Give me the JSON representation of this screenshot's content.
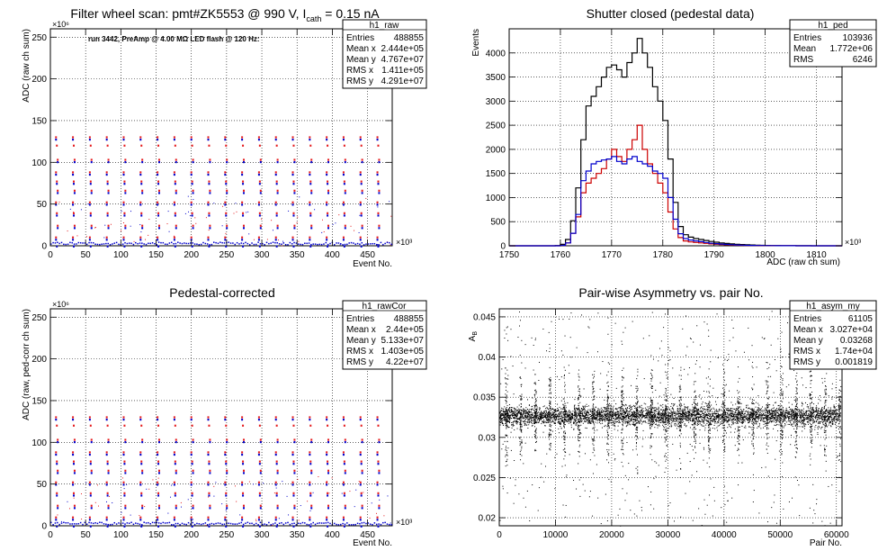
{
  "panels": [
    {
      "id": "raw",
      "title_main": "Filter wheel scan: pmt#ZK5553 @   990 V, I",
      "title_sub": "cath",
      "title_tail": " = 0.15 nA",
      "annotation": "run 3442, PreAmp @ 4.00 MΩ LED flash @  120 Hz:",
      "xlabel": "Event No.",
      "ylabel": "ADC (raw ch sum)",
      "x_multiplier": "×10³",
      "y_multiplier": "×10⁶",
      "stats": {
        "name": "h1_raw",
        "rows": [
          [
            "Entries",
            "488855"
          ],
          [
            "Mean x",
            "2.444e+05"
          ],
          [
            "Mean y",
            "4.767e+07"
          ],
          [
            "RMS x",
            "1.411e+05"
          ],
          [
            "RMS y",
            "4.291e+07"
          ]
        ]
      }
    },
    {
      "id": "ped",
      "title_main": "Shutter closed (pedestal data)",
      "xlabel": "ADC (raw ch sum)",
      "ylabel": "Events",
      "x_multiplier": "×10³",
      "stats": {
        "name": "h1_ped",
        "rows": [
          [
            "Entries",
            "103936"
          ],
          [
            "Mean",
            "1.772e+06"
          ],
          [
            "RMS",
            "6246"
          ]
        ]
      }
    },
    {
      "id": "cor",
      "title_main": "Pedestal-corrected",
      "xlabel": "Event No.",
      "ylabel": "ADC (raw, ped-corr ch sum)",
      "x_multiplier": "×10³",
      "y_multiplier": "×10⁶",
      "stats": {
        "name": "h1_rawCor",
        "rows": [
          [
            "Entries",
            "488855"
          ],
          [
            "Mean x",
            "2.44e+05"
          ],
          [
            "Mean y",
            "5.133e+07"
          ],
          [
            "RMS x",
            "1.403e+05"
          ],
          [
            "RMS y",
            "4.22e+07"
          ]
        ]
      }
    },
    {
      "id": "asym",
      "title_main": "Pair-wise Asymmetry vs. pair No.",
      "xlabel": "Pair No.",
      "ylabel": "A",
      "ylabel_sub": "B",
      "stats": {
        "name": "h1_asym_my",
        "rows": [
          [
            "Entries",
            "61105"
          ],
          [
            "Mean x",
            "3.027e+04"
          ],
          [
            "Mean y",
            "0.03268"
          ],
          [
            "RMS x",
            "1.74e+04"
          ],
          [
            "RMS y",
            "0.001819"
          ]
        ]
      }
    }
  ],
  "chart_data": [
    {
      "type": "scatter",
      "panel": "raw",
      "xlim": [
        0,
        485
      ],
      "ylim": [
        0,
        260
      ],
      "xticks": [
        0,
        50,
        100,
        150,
        200,
        250,
        300,
        350,
        400,
        450
      ],
      "yticks": [
        0,
        50,
        100,
        150,
        200,
        250
      ],
      "grid": true,
      "legend": "top-right",
      "scan_period": 24,
      "levels": [
        {
          "y": 130,
          "red": true,
          "blue": true
        },
        {
          "y": 120,
          "red": true,
          "blue": false
        },
        {
          "y": 103,
          "red": true,
          "blue": true
        },
        {
          "y": 88,
          "red": true,
          "blue": true
        },
        {
          "y": 77,
          "red": true,
          "blue": true
        },
        {
          "y": 66,
          "red": true,
          "blue": true
        },
        {
          "y": 52,
          "red": true,
          "blue": true
        },
        {
          "y": 39,
          "red": true,
          "blue": true
        },
        {
          "y": 24,
          "red": true,
          "blue": true
        },
        {
          "y": 10,
          "red": true,
          "blue": true
        },
        {
          "y": 2,
          "red": false,
          "blue": true
        }
      ],
      "colors": {
        "red": "#e41a1c",
        "blue": "#0000cc",
        "black": "#000000"
      }
    },
    {
      "type": "line",
      "panel": "ped",
      "xlim": [
        1750,
        1815
      ],
      "ylim": [
        0,
        4500
      ],
      "xticks": [
        1750,
        1760,
        1770,
        1780,
        1790,
        1800,
        1810
      ],
      "yticks": [
        0,
        500,
        1000,
        1500,
        2000,
        2500,
        3000,
        3500,
        4000
      ],
      "grid": true,
      "legend": "top-right",
      "bin_width": 1,
      "bin_start": 1750,
      "series": [
        {
          "color": "#000000",
          "values": [
            0,
            0,
            0,
            0,
            0,
            0,
            0,
            0,
            0,
            5,
            30,
            130,
            520,
            1200,
            2200,
            2900,
            3100,
            3300,
            3500,
            3700,
            3750,
            3650,
            3500,
            3800,
            4000,
            4300,
            4000,
            3700,
            3300,
            3000,
            2600,
            1800,
            900,
            400,
            230,
            180,
            150,
            130,
            110,
            90,
            75,
            60,
            48,
            40,
            32,
            26,
            20,
            16,
            12,
            10,
            8,
            6,
            5,
            4,
            3,
            2,
            2,
            1,
            1,
            0,
            0,
            0,
            0,
            0,
            0
          ]
        },
        {
          "color": "#cc0000",
          "values": [
            0,
            0,
            0,
            0,
            0,
            0,
            0,
            0,
            0,
            0,
            10,
            60,
            260,
            600,
            1100,
            1300,
            1400,
            1500,
            1600,
            1800,
            2000,
            1850,
            1750,
            2000,
            2200,
            2500,
            2000,
            1700,
            1500,
            1300,
            1100,
            700,
            350,
            170,
            100,
            80,
            70,
            60,
            50,
            40,
            32,
            26,
            20,
            16,
            12,
            10,
            8,
            6,
            5,
            4,
            3,
            2,
            2,
            1,
            1,
            1,
            0,
            0,
            0,
            0,
            0,
            0,
            0,
            0,
            0
          ]
        },
        {
          "color": "#0000cc",
          "values": [
            0,
            0,
            0,
            0,
            0,
            0,
            0,
            0,
            0,
            0,
            10,
            60,
            260,
            650,
            1350,
            1550,
            1700,
            1750,
            1780,
            1800,
            1850,
            1750,
            1700,
            1800,
            1850,
            1750,
            1700,
            1650,
            1550,
            1500,
            1400,
            1000,
            550,
            250,
            150,
            120,
            100,
            85,
            70,
            55,
            45,
            36,
            28,
            22,
            17,
            13,
            10,
            8,
            6,
            5,
            4,
            3,
            2,
            2,
            1,
            1,
            0,
            0,
            0,
            0,
            0,
            0,
            0,
            0,
            0
          ]
        }
      ]
    },
    {
      "type": "scatter",
      "panel": "cor",
      "xlim": [
        0,
        485
      ],
      "ylim": [
        0,
        260
      ],
      "xticks": [
        0,
        50,
        100,
        150,
        200,
        250,
        300,
        350,
        400,
        450
      ],
      "yticks": [
        0,
        50,
        100,
        150,
        200,
        250
      ],
      "grid": true,
      "legend": "top-right",
      "scan_period": 24,
      "levels": [
        {
          "y": 130,
          "red": true,
          "blue": true
        },
        {
          "y": 120,
          "red": true,
          "blue": false
        },
        {
          "y": 103,
          "red": true,
          "blue": true
        },
        {
          "y": 88,
          "red": true,
          "blue": true
        },
        {
          "y": 77,
          "red": true,
          "blue": true
        },
        {
          "y": 66,
          "red": true,
          "blue": true
        },
        {
          "y": 52,
          "red": true,
          "blue": true
        },
        {
          "y": 39,
          "red": true,
          "blue": true
        },
        {
          "y": 24,
          "red": true,
          "blue": true
        },
        {
          "y": 10,
          "red": true,
          "blue": true
        },
        {
          "y": 2,
          "red": false,
          "blue": true
        }
      ],
      "colors": {
        "red": "#e41a1c",
        "blue": "#0000cc",
        "black": "#000000"
      }
    },
    {
      "type": "scatter",
      "panel": "asym",
      "xlim": [
        0,
        61000
      ],
      "ylim": [
        0.019,
        0.046
      ],
      "xticks": [
        0,
        10000,
        20000,
        30000,
        40000,
        50000,
        60000
      ],
      "yticks": [
        0.02,
        0.025,
        0.03,
        0.035,
        0.04,
        0.045
      ],
      "grid": true,
      "legend": "top-right",
      "band_center": 0.0327,
      "band_halfwidth": 0.0011,
      "flare_period": 2580,
      "flare_halfwidth": 0.0045,
      "color": "#000000"
    }
  ]
}
